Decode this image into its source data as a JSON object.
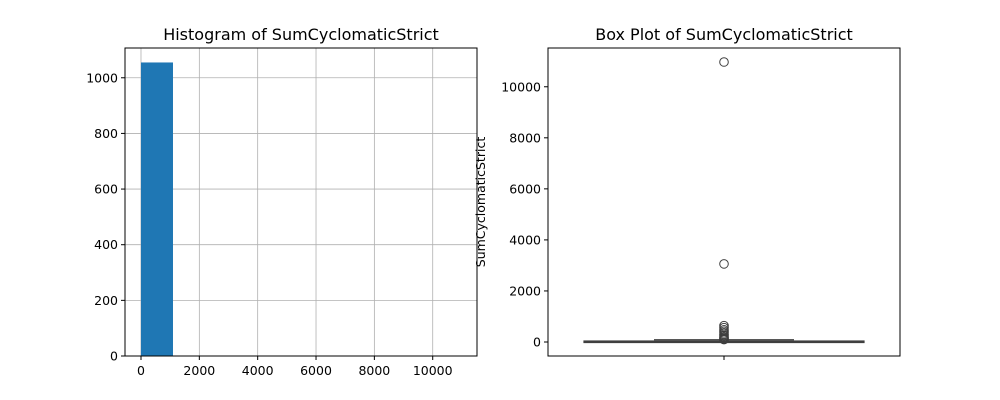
{
  "chart_data": [
    {
      "type": "bar",
      "title": "Histogram of SumCyclomaticStrict",
      "xlabel": "",
      "ylabel": "",
      "bins": [
        {
          "start": 0,
          "end": 1097,
          "count": 1055
        },
        {
          "start": 1097,
          "end": 2194,
          "count": 0
        },
        {
          "start": 2194,
          "end": 3291,
          "count": 1
        },
        {
          "start": 3291,
          "end": 4388,
          "count": 0
        },
        {
          "start": 4388,
          "end": 5485,
          "count": 0
        },
        {
          "start": 5485,
          "end": 6582,
          "count": 0
        },
        {
          "start": 6582,
          "end": 7679,
          "count": 0
        },
        {
          "start": 7679,
          "end": 8776,
          "count": 0
        },
        {
          "start": 8776,
          "end": 9873,
          "count": 0
        },
        {
          "start": 9873,
          "end": 10970,
          "count": 1
        }
      ],
      "xlim": [
        -548,
        11518
      ],
      "ylim": [
        0,
        1107
      ],
      "xticks": [
        0,
        2000,
        4000,
        6000,
        8000,
        10000
      ],
      "yticks": [
        0,
        200,
        400,
        600,
        800,
        1000
      ],
      "grid": true,
      "color": "#1f77b4"
    },
    {
      "type": "box",
      "title": "Box Plot of SumCyclomaticStrict",
      "xlabel": "",
      "ylabel": "SumCyclomaticStrict",
      "box": {
        "q1": 5,
        "median": 14,
        "q3": 38,
        "whisker_low": 0,
        "whisker_high": 88
      },
      "outliers": [
        10970,
        3060,
        640,
        560,
        480,
        420,
        360,
        300,
        250,
        200,
        160,
        130,
        110,
        95
      ],
      "ylim": [
        -549,
        11519
      ],
      "yticks": [
        0,
        2000,
        4000,
        6000,
        8000,
        10000
      ],
      "grid": false,
      "color": "#1f77b4"
    }
  ]
}
